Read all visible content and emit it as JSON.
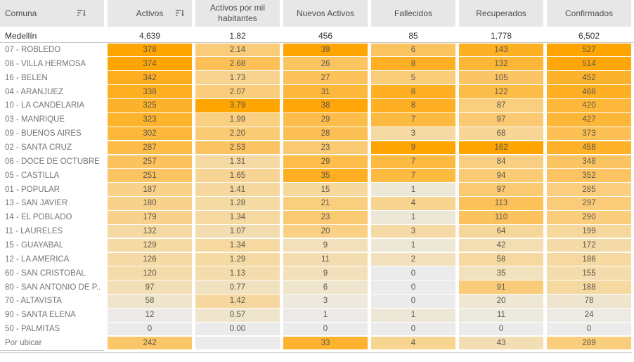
{
  "chart_data": {
    "type": "heatmap",
    "title": "",
    "columns": [
      "Comuna",
      "Activos",
      "Activos por mil habitantes",
      "Nuevos Activos",
      "Fallecidos",
      "Recuperados",
      "Confirmados"
    ],
    "total_row": [
      "Medellín",
      "4,639",
      "1.82",
      "456",
      "85",
      "1,778",
      "6,502"
    ],
    "rows": [
      [
        "07 - ROBLEDO",
        378,
        2.14,
        39,
        6,
        143,
        527
      ],
      [
        "08 - VILLA HERMOSA",
        374,
        2.68,
        26,
        8,
        132,
        514
      ],
      [
        "16 - BELEN",
        342,
        1.73,
        27,
        5,
        105,
        452
      ],
      [
        "04 - ARANJUEZ",
        338,
        2.07,
        31,
        8,
        122,
        468
      ],
      [
        "10 - LA CANDELARIA",
        325,
        3.79,
        38,
        8,
        87,
        420
      ],
      [
        "03 - MANRIQUE",
        323,
        1.99,
        29,
        7,
        97,
        427
      ],
      [
        "09 - BUENOS AIRES",
        302,
        2.2,
        28,
        3,
        68,
        373
      ],
      [
        "02 - SANTA CRUZ",
        287,
        2.53,
        23,
        9,
        162,
        458
      ],
      [
        "06 - DOCE DE OCTUBRE",
        257,
        1.31,
        29,
        7,
        84,
        348
      ],
      [
        "05 - CASTILLA",
        251,
        1.65,
        35,
        7,
        94,
        352
      ],
      [
        "01 - POPULAR",
        187,
        1.41,
        15,
        1,
        97,
        285
      ],
      [
        "13 - SAN JAVIER",
        180,
        1.28,
        21,
        4,
        113,
        297
      ],
      [
        "14 - EL POBLADO",
        179,
        1.34,
        23,
        1,
        110,
        290
      ],
      [
        "11 - LAURELES",
        132,
        1.07,
        20,
        3,
        64,
        199
      ],
      [
        "15 - GUAYABAL",
        129,
        1.34,
        9,
        1,
        42,
        172
      ],
      [
        "12 - LA AMERICA",
        126,
        1.29,
        11,
        2,
        58,
        186
      ],
      [
        "60 - SAN CRISTOBAL",
        120,
        1.13,
        9,
        0,
        35,
        155
      ],
      [
        "80 - SAN ANTONIO DE P..",
        97,
        0.77,
        6,
        0,
        91,
        188
      ],
      [
        "70 - ALTAVISTA",
        58,
        1.42,
        3,
        0,
        20,
        78
      ],
      [
        "90 - SANTA ELENA",
        12,
        0.57,
        1,
        1,
        11,
        24
      ],
      [
        "50 - PALMITAS",
        0,
        0.0,
        0,
        0,
        0,
        0
      ],
      [
        "Por ubicar",
        242,
        null,
        33,
        4,
        43,
        289
      ]
    ],
    "layout": {
      "sorted_columns": [
        "Comuna",
        "Activos"
      ],
      "color_scaling": "per column, 0 to column max",
      "decimal_columns": [
        "Activos por mil habitantes"
      ]
    }
  },
  "table": {
    "column_max": [
      378,
      3.79,
      39,
      9,
      162,
      527
    ],
    "heat_stops": [
      [
        0.0,
        "#ebebeb"
      ],
      [
        0.1,
        "#ede8da"
      ],
      [
        0.2,
        "#f1e2c0"
      ],
      [
        0.35,
        "#f5d9a2"
      ],
      [
        0.5,
        "#f9d187"
      ],
      [
        0.65,
        "#fbc566"
      ],
      [
        0.8,
        "#fdb83b"
      ],
      [
        0.92,
        "#feac1b"
      ],
      [
        1.0,
        "#ffa502"
      ]
    ],
    "null_color": "#ebebeb"
  },
  "colors": {
    "header_bg": "#e7e7e7",
    "heat_max": "#ffa502",
    "heat_zero": "#ebebeb",
    "total_divider": "#c9c9c9",
    "bottom_divider": "#d4d4d4"
  },
  "icons": {
    "comuna_header": "sort-descending-icon",
    "activos_header": "sort-descending-icon"
  }
}
